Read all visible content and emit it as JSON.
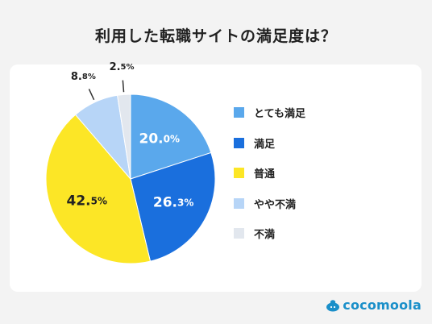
{
  "title": "利用した転職サイトの満足度は？",
  "brand": {
    "name": "cocomoola",
    "color": "#1a8fc9"
  },
  "chart_data": {
    "type": "pie",
    "start_angle_deg": 0,
    "direction": "clockwise",
    "slices": [
      {
        "label": "とても満足",
        "value": 20.0,
        "int": "20.",
        "dec": "0%",
        "color": "#5aa8ec"
      },
      {
        "label": "満足",
        "value": 26.3,
        "int": "26.",
        "dec": "3%",
        "color": "#1a6fdd"
      },
      {
        "label": "普通",
        "value": 42.5,
        "int": "42.",
        "dec": "5%",
        "color": "#fce626"
      },
      {
        "label": "やや不満",
        "value": 8.8,
        "int": "8.",
        "dec": "8%",
        "color": "#b7d5f7"
      },
      {
        "label": "不満",
        "value": 2.5,
        "int": "2.",
        "dec": "5%",
        "color": "#e2e7ee"
      }
    ],
    "legend_position": "right"
  }
}
